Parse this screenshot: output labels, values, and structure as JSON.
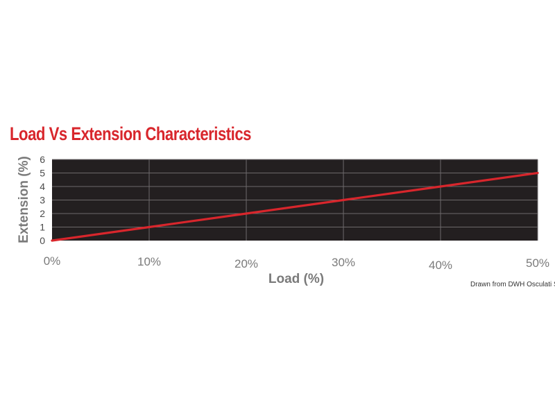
{
  "chart_data": {
    "type": "line",
    "title": "Load Vs Extension Characteristics",
    "xlabel": "Load (%)",
    "ylabel": "Extension (%)",
    "x": [
      0,
      10,
      20,
      30,
      40,
      50
    ],
    "x_tick_labels": [
      "0%",
      "10%",
      "20%",
      "30%",
      "40%",
      "50%"
    ],
    "y_tick_labels": [
      "0",
      "1",
      "2",
      "3",
      "4",
      "5",
      "6"
    ],
    "xlim": [
      0,
      50
    ],
    "ylim": [
      0,
      6
    ],
    "grid": true,
    "series": [
      {
        "x": [
          0,
          10,
          20,
          30,
          40,
          50
        ],
        "values": [
          0,
          1,
          2,
          3,
          4,
          5
        ]
      }
    ]
  },
  "credit": "Drawn from DWH Osculati SpA",
  "colors": {
    "plot_background": "#231f20",
    "line": "#d8262c",
    "title": "#d8262c",
    "gridline": "#6e6a6b"
  }
}
